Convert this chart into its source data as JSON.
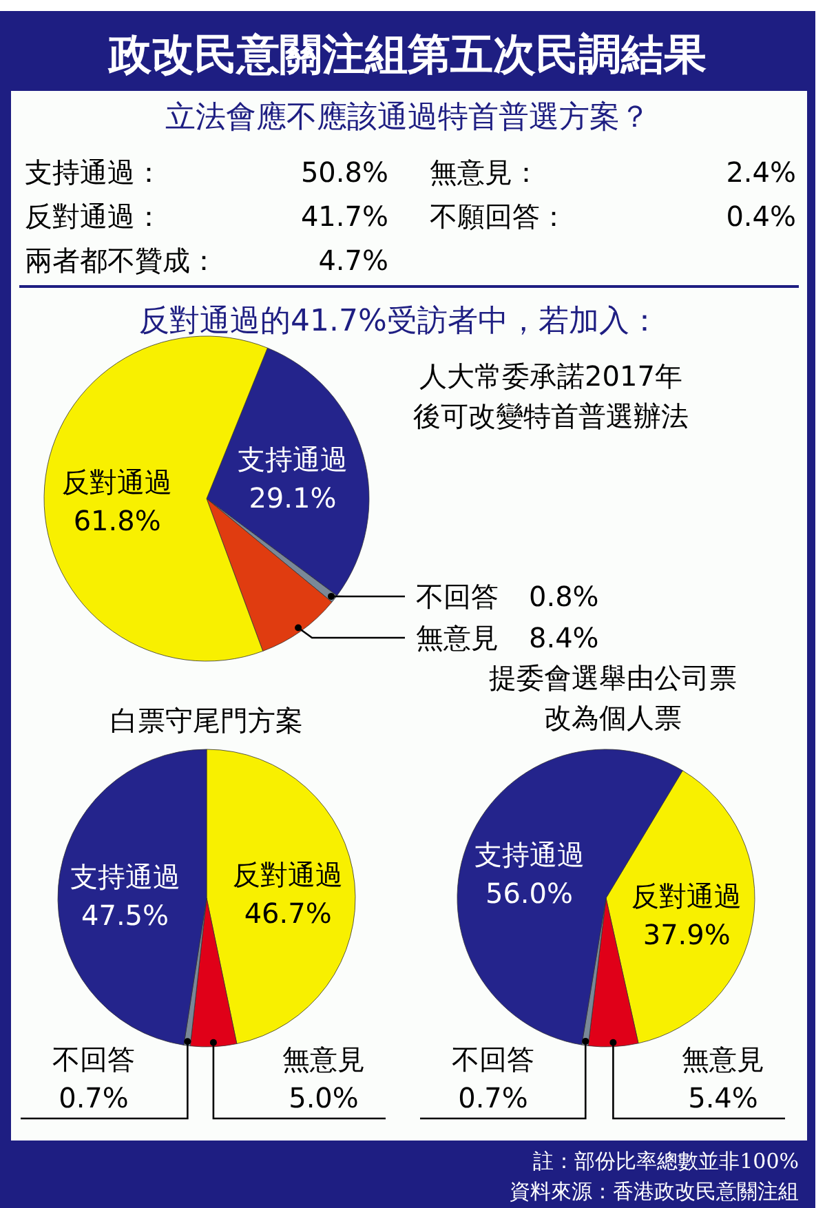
{
  "chart_data": [
    {
      "type": "other",
      "title": "政改民意關注組第五次民調結果",
      "subtitle": "立法會應不應該通過特首普選方案？",
      "annotations": [
        "支持通過：",
        "50.8%",
        "反對通過：",
        "41.7%",
        "兩者都不贊成：",
        "4.7%",
        "無意見：",
        "2.4%",
        "不願回答：",
        "0.4%"
      ]
    },
    {
      "type": "pie",
      "title": "反對通過的41.7%受訪者中，若加入：",
      "subtitle": "人大常委承諾2017年後可改變特首普選辦法",
      "categories": [
        "支持通過",
        "不回答",
        "無意見",
        "反對通過"
      ],
      "values": [
        29.1,
        0.8,
        8.4,
        61.8
      ],
      "value_labels": [
        "29.1%",
        "0.8%",
        "8.4%",
        "61.8%"
      ],
      "colors": [
        "#24248c",
        "#7a8898",
        "#e03c10",
        "#f8f000"
      ]
    },
    {
      "type": "pie",
      "subtitle": "白票守尾門方案",
      "categories": [
        "反對通過",
        "無意見",
        "不回答",
        "支持通過"
      ],
      "values": [
        46.7,
        5.0,
        0.7,
        47.5
      ],
      "value_labels": [
        "46.7%",
        "5.0%",
        "0.7%",
        "47.5%"
      ],
      "colors": [
        "#f8f000",
        "#e00018",
        "#7a8898",
        "#24248c"
      ]
    },
    {
      "type": "pie",
      "subtitle": "提委會選舉由公司票改為個人票",
      "categories": [
        "反對通過",
        "無意見",
        "不回答",
        "支持通過"
      ],
      "values": [
        37.9,
        5.4,
        0.7,
        56.0
      ],
      "value_labels": [
        "37.9%",
        "5.4%",
        "0.7%",
        "56.0%"
      ],
      "colors": [
        "#f8f000",
        "#e00018",
        "#7a8898",
        "#24248c"
      ],
      "annotations": [
        "註：部份比率總數並非100%",
        "資料來源：香港政改民意關注組"
      ]
    }
  ]
}
